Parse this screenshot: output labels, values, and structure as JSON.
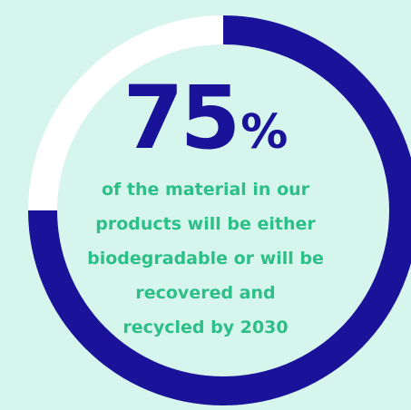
{
  "stat": {
    "value": "75",
    "unit": "%",
    "progress_fraction": 0.75
  },
  "caption": [
    "of the material in our",
    "products will be either",
    "biodegradable or will be",
    "recovered and",
    "recycled by 2030"
  ],
  "colors": {
    "background": "#d6f5ec",
    "ring_fill": "#1a1298",
    "ring_track": "#ffffff",
    "headline": "#1a1298",
    "caption_text": "#2dbf88",
    "disc": "#d6f5ec"
  }
}
